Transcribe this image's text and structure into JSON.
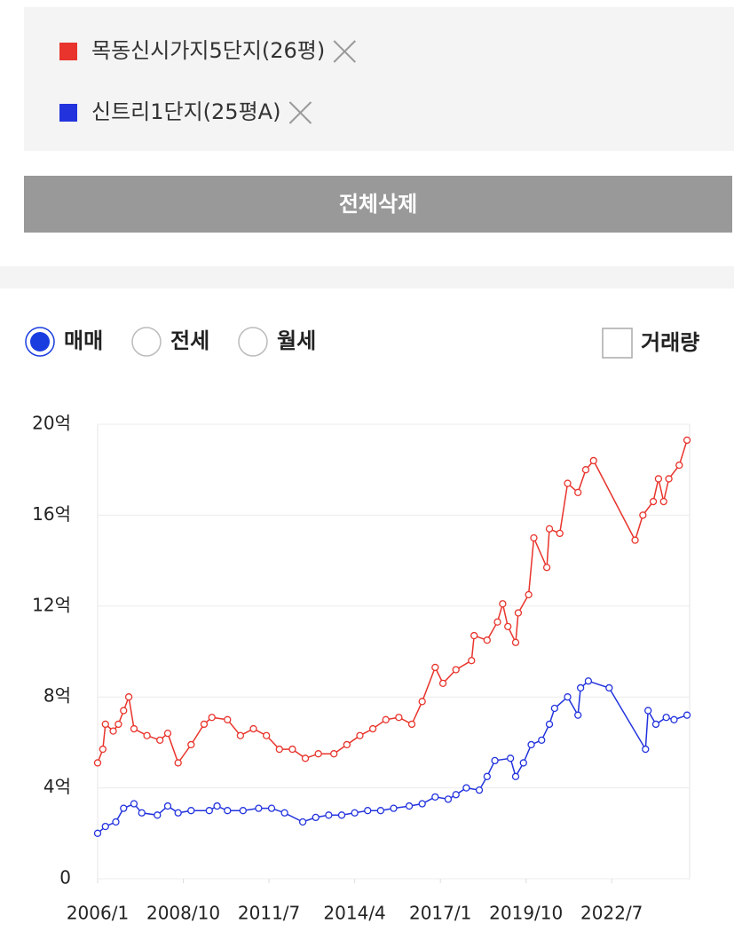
{
  "filters": {
    "clear_button": "전체삭제"
  },
  "options": {
    "radios": [
      {
        "label": "매매",
        "checked": true
      },
      {
        "label": "전세",
        "checked": false
      },
      {
        "label": "월세",
        "checked": false
      }
    ],
    "checkbox": {
      "label": "거래량",
      "checked": false
    }
  },
  "chart_data": {
    "type": "line",
    "xlim": [
      "2006/1",
      "2025/1"
    ],
    "xticks": [
      "2006/1",
      "2008/10",
      "2011/7",
      "2014/4",
      "2017/1",
      "2019/10",
      "2022/7"
    ],
    "ylim": [
      0,
      20
    ],
    "yticks": [
      0,
      {
        "value": 4,
        "label": "4억"
      },
      {
        "value": 8,
        "label": "8억"
      },
      {
        "value": 12,
        "label": "12억"
      },
      {
        "value": 16,
        "label": "16억"
      },
      {
        "value": 20,
        "label": "20억"
      }
    ],
    "grid": true,
    "series": [
      {
        "name": "목동신시가지5단지(26평)",
        "color": "#e8342c",
        "x": [
          "2006/1",
          "2006/3",
          "2006/4",
          "2006/7",
          "2006/9",
          "2006/11",
          "2007/1",
          "2007/3",
          "2007/8",
          "2008/1",
          "2008/4",
          "2008/8",
          "2009/1",
          "2009/6",
          "2009/9",
          "2010/3",
          "2010/8",
          "2011/1",
          "2011/6",
          "2011/11",
          "2012/4",
          "2012/9",
          "2013/2",
          "2013/8",
          "2014/1",
          "2014/6",
          "2014/11",
          "2015/4",
          "2015/9",
          "2016/2",
          "2016/6",
          "2016/11",
          "2017/2",
          "2017/7",
          "2018/1",
          "2018/2",
          "2018/7",
          "2018/11",
          "2019/1",
          "2019/3",
          "2019/6",
          "2019/7",
          "2019/11",
          "2020/1",
          "2020/6",
          "2020/7",
          "2020/11",
          "2021/2",
          "2021/6",
          "2021/9",
          "2021/12",
          "2023/4",
          "2023/7",
          "2023/11",
          "2024/1",
          "2024/3",
          "2024/5",
          "2024/9",
          "2024/12"
        ],
        "values": [
          5.1,
          5.7,
          6.8,
          6.5,
          6.8,
          7.4,
          8.0,
          6.6,
          6.3,
          6.1,
          6.4,
          5.1,
          5.9,
          6.8,
          7.1,
          7.0,
          6.3,
          6.6,
          6.3,
          5.7,
          5.7,
          5.3,
          5.5,
          5.5,
          5.9,
          6.3,
          6.6,
          7.0,
          7.1,
          6.8,
          7.8,
          9.3,
          8.6,
          9.2,
          9.6,
          10.7,
          10.5,
          11.3,
          12.1,
          11.1,
          10.4,
          11.7,
          12.5,
          15.0,
          13.7,
          15.4,
          15.2,
          17.4,
          17.0,
          18.0,
          18.4,
          14.9,
          16.0,
          16.6,
          17.6,
          16.6,
          17.6,
          18.2,
          19.3
        ]
      },
      {
        "name": "신트리1단지(25평A)",
        "color": "#2233dd",
        "x": [
          "2006/1",
          "2006/4",
          "2006/8",
          "2006/11",
          "2007/3",
          "2007/6",
          "2007/12",
          "2008/4",
          "2008/8",
          "2009/1",
          "2009/8",
          "2009/11",
          "2010/3",
          "2010/9",
          "2011/3",
          "2011/8",
          "2012/1",
          "2012/8",
          "2013/1",
          "2013/6",
          "2013/11",
          "2014/4",
          "2014/9",
          "2015/2",
          "2015/7",
          "2016/1",
          "2016/6",
          "2016/11",
          "2017/4",
          "2017/7",
          "2017/11",
          "2018/4",
          "2018/7",
          "2018/10",
          "2019/4",
          "2019/6",
          "2019/9",
          "2019/12",
          "2020/4",
          "2020/7",
          "2020/9",
          "2021/2",
          "2021/6",
          "2021/7",
          "2021/10",
          "2022/6",
          "2023/8",
          "2023/9",
          "2023/12",
          "2024/4",
          "2024/7",
          "2024/12"
        ],
        "values": [
          2.0,
          2.3,
          2.5,
          3.1,
          3.3,
          2.9,
          2.8,
          3.2,
          2.9,
          3.0,
          3.0,
          3.2,
          3.0,
          3.0,
          3.1,
          3.1,
          2.9,
          2.5,
          2.7,
          2.8,
          2.8,
          2.9,
          3.0,
          3.0,
          3.1,
          3.2,
          3.3,
          3.6,
          3.5,
          3.7,
          4.0,
          3.9,
          4.5,
          5.2,
          5.3,
          4.5,
          5.1,
          5.9,
          6.1,
          6.8,
          7.5,
          8.0,
          7.2,
          8.4,
          8.7,
          8.4,
          5.7,
          7.4,
          6.8,
          7.1,
          7.0,
          7.2
        ]
      }
    ]
  }
}
